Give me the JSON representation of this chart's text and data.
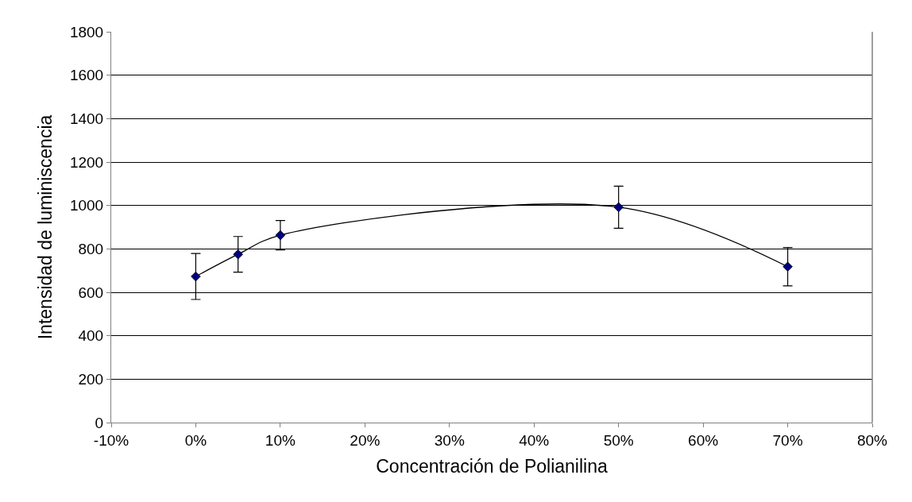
{
  "chart_data": {
    "type": "line",
    "xlabel": "Concentración de Polianilina",
    "ylabel": "Intensidad de luminiscencia",
    "x": [
      0,
      5,
      10,
      50,
      70
    ],
    "series": [
      {
        "color": "#000080",
        "values": [
          673,
          775,
          863,
          992,
          718
        ],
        "errors": [
          106,
          82,
          68,
          97,
          88
        ]
      }
    ],
    "xlim": [
      -10,
      80
    ],
    "xticks": [
      {
        "value": -10,
        "label": "-10%"
      },
      {
        "value": 0,
        "label": "0%"
      },
      {
        "value": 10,
        "label": "10%"
      },
      {
        "value": 20,
        "label": "20%"
      },
      {
        "value": 30,
        "label": "30%"
      },
      {
        "value": 40,
        "label": "40%"
      },
      {
        "value": 50,
        "label": "50%"
      },
      {
        "value": 60,
        "label": "60%"
      },
      {
        "value": 70,
        "label": "70%"
      },
      {
        "value": 80,
        "label": "80%"
      }
    ],
    "ylim": [
      0,
      1800
    ],
    "yticks": [
      0,
      200,
      400,
      600,
      800,
      1000,
      1200,
      1400,
      1600,
      1800
    ],
    "grid": "y",
    "marker": "diamond",
    "line_style": "solid"
  }
}
